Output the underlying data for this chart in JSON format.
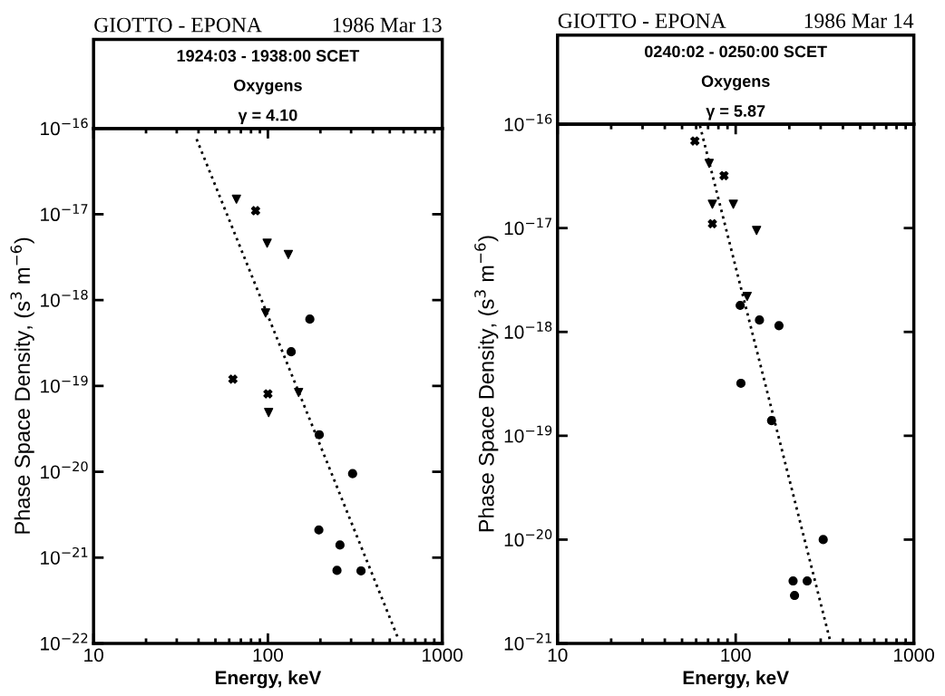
{
  "chart_data": [
    {
      "type": "scatter",
      "title": "GIOTTO - EPONA",
      "subtitle": "1986 Mar 13",
      "annotations": [
        "1924:03 - 1938:00 SCET",
        "Oxygens",
        "γ = 4.10"
      ],
      "xlabel": "Energy, keV",
      "ylabel": "Phase Space Density, (s$^{3}$ m$^{−6}$)",
      "log": "xy",
      "xlim": [
        10,
        1000
      ],
      "xticks": [
        10,
        100,
        1000
      ],
      "ylim": [
        1e-22,
        1e-16
      ],
      "yticks": [
        {
          "value": 1e-22,
          "label": "10$^{−22}$"
        },
        {
          "value": 1e-21,
          "label": "10$^{−21}$"
        },
        {
          "value": 1e-20,
          "label": "10$^{−20}$"
        },
        {
          "value": 1e-19,
          "label": "10$^{−19}$"
        },
        {
          "value": 1e-18,
          "label": "10$^{−18}$"
        },
        {
          "value": 1e-17,
          "label": "10$^{−17}$"
        },
        {
          "value": 1e-16,
          "label": "10$^{−16}$"
        }
      ],
      "grid": false,
      "legend": false,
      "series": [
        {
          "marker": "triangle",
          "color": "#000000",
          "x": [
            66,
            99,
            131,
            97,
            150,
            101
          ],
          "values": [
            1.5e-17,
            4.6e-18,
            3.4e-18,
            7.1e-19,
            8.4e-20,
            4.9e-20
          ]
        },
        {
          "marker": "cross",
          "color": "#000000",
          "x": [
            85,
            63,
            100
          ],
          "values": [
            1.1e-17,
            1.2e-19,
            8.1e-20
          ]
        },
        {
          "marker": "circle",
          "color": "#000000",
          "x": [
            174,
            136,
            197,
            306,
            196,
            259,
            249,
            342
          ],
          "values": [
            6e-19,
            2.5e-19,
            2.7e-20,
            9.5e-21,
            2.1e-21,
            1.4e-21,
            7.1e-22,
            7e-22
          ]
        },
        {
          "type": "line",
          "line_style": "dotted",
          "marker": "none",
          "color": "#000000",
          "x": [
            39,
            563
          ],
          "values": [
            7.5e-17,
            1.1e-22
          ]
        }
      ]
    },
    {
      "type": "scatter",
      "title": "GIOTTO - EPONA",
      "subtitle": "1986 Mar 14",
      "annotations": [
        "0240:02 - 0250:00 SCET",
        "Oxygens",
        "γ = 5.87"
      ],
      "xlabel": "Energy, keV",
      "ylabel": "Phase Space Density, (s$^{3}$ m$^{−6}$)",
      "log": "xy",
      "xlim": [
        10,
        1000
      ],
      "xticks": [
        10,
        100,
        1000
      ],
      "ylim": [
        1e-21,
        1e-16
      ],
      "yticks": [
        {
          "value": 1e-21,
          "label": "10$^{−21}$"
        },
        {
          "value": 1e-20,
          "label": "10$^{−20}$"
        },
        {
          "value": 1e-19,
          "label": "10$^{−19}$"
        },
        {
          "value": 1e-18,
          "label": "10$^{−18}$"
        },
        {
          "value": 1e-17,
          "label": "10$^{−17}$"
        },
        {
          "value": 1e-16,
          "label": "10$^{−16}$"
        }
      ],
      "grid": false,
      "legend": false,
      "series": [
        {
          "marker": "triangle",
          "color": "#000000",
          "x": [
            71,
            74,
            97,
            131,
            116
          ],
          "values": [
            4.2e-17,
            1.7e-17,
            1.7e-17,
            9.5e-18,
            2.2e-18
          ]
        },
        {
          "marker": "cross",
          "color": "#000000",
          "x": [
            59,
            86,
            74
          ],
          "values": [
            6.9e-17,
            3.2e-17,
            1.1e-17
          ]
        },
        {
          "marker": "circle",
          "color": "#000000",
          "x": [
            106,
            136,
            175,
            107,
            159,
            310,
            210,
            252,
            214
          ],
          "values": [
            1.8e-18,
            1.3e-18,
            1.15e-18,
            3.2e-19,
            1.4e-19,
            1e-20,
            4e-21,
            4e-21,
            2.9e-21
          ]
        },
        {
          "type": "line",
          "line_style": "dotted",
          "marker": "none",
          "color": "#000000",
          "x": [
            63,
            342
          ],
          "values": [
            9.7e-17,
            1e-21
          ]
        }
      ]
    }
  ]
}
